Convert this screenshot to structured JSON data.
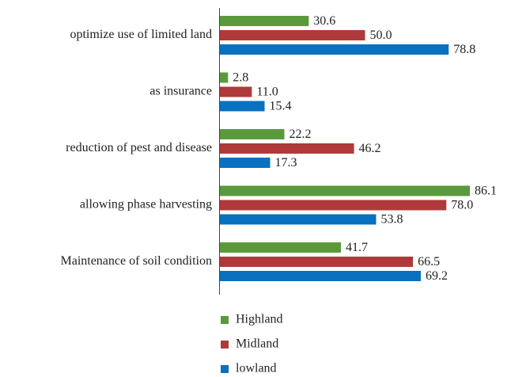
{
  "chart_data": {
    "type": "barh",
    "categories": [
      "optimize use of limited land",
      "as insurance",
      "reduction of pest and disease",
      "allowing phase harvesting",
      "Maintenance of soil condition"
    ],
    "series": [
      {
        "name": "Highland",
        "color": "#5b9a3c",
        "values": [
          30.6,
          2.8,
          22.2,
          86.1,
          41.7
        ],
        "value_labels": [
          "30.6",
          "2.8",
          "22.2",
          "86.1",
          "41.7"
        ]
      },
      {
        "name": "Midland",
        "color": "#b03a3a",
        "values": [
          50.0,
          11.0,
          46.2,
          78.0,
          66.5
        ],
        "value_labels": [
          "50.0",
          "11.0",
          "46.2",
          "78.0",
          "66.5"
        ]
      },
      {
        "name": "lowland",
        "color": "#0a70c0",
        "values": [
          78.8,
          15.4,
          17.3,
          53.8,
          69.2
        ],
        "value_labels": [
          "78.8",
          "15.4",
          "17.3",
          "53.8",
          "69.2"
        ]
      }
    ],
    "legend": "bottom"
  }
}
